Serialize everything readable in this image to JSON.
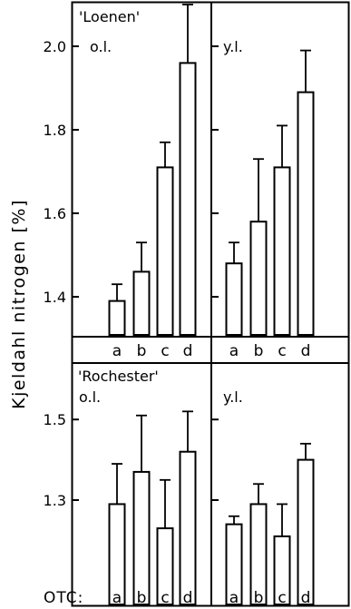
{
  "figure": {
    "ylabel": "Kjeldahl nitrogen [%]",
    "otc_prefix": "OTC:",
    "cultivars": [
      "'Loenen'",
      "'Rochester'"
    ]
  },
  "chart_data": [
    {
      "type": "bar",
      "title": "'Loenen'",
      "subtitle": "o.l.",
      "categories": [
        "a",
        "b",
        "c",
        "d"
      ],
      "values": [
        1.39,
        1.46,
        1.71,
        1.96
      ],
      "error_upper": [
        1.43,
        1.53,
        1.77,
        2.1
      ],
      "ylim": [
        1.3,
        2.1
      ],
      "yticks": [
        1.4,
        1.6,
        1.8,
        2.0
      ],
      "ytick_labels": [
        "1.4",
        "1.6",
        "1.8",
        "2.0"
      ]
    },
    {
      "type": "bar",
      "title": "",
      "subtitle": "y.l.",
      "categories": [
        "a",
        "b",
        "c",
        "d"
      ],
      "values": [
        1.48,
        1.58,
        1.71,
        1.89
      ],
      "error_upper": [
        1.53,
        1.73,
        1.81,
        1.99
      ],
      "ylim": [
        1.3,
        2.1
      ],
      "yticks": [
        1.4,
        1.6,
        1.8,
        2.0
      ],
      "ytick_labels": []
    },
    {
      "type": "bar",
      "title": "'Rochester'",
      "subtitle": "o.l.",
      "categories": [
        "a",
        "b",
        "c",
        "d"
      ],
      "values": [
        1.29,
        1.37,
        1.23,
        1.42
      ],
      "error_upper": [
        1.39,
        1.51,
        1.35,
        1.52
      ],
      "ylim": [
        1.11,
        1.65
      ],
      "yticks": [
        1.3,
        1.5
      ],
      "ytick_labels": [
        "1.3",
        "1.5"
      ]
    },
    {
      "type": "bar",
      "title": "",
      "subtitle": "y.l.",
      "categories": [
        "a",
        "b",
        "c",
        "d"
      ],
      "values": [
        1.24,
        1.29,
        1.21,
        1.4
      ],
      "error_upper": [
        1.26,
        1.34,
        1.29,
        1.44
      ],
      "ylim": [
        1.11,
        1.65
      ],
      "yticks": [
        1.3,
        1.5
      ],
      "ytick_labels": []
    }
  ]
}
